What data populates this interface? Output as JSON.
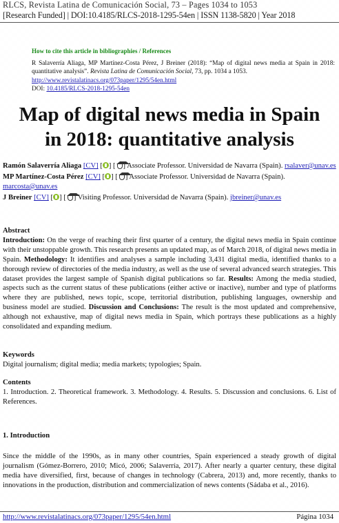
{
  "header": {
    "line1": "RLCS, Revista Latina de Comunicación Social, 73 – Pages 1034 to 1053",
    "line2": "[Research Funded] | DOI:10.4185/RLCS-2018-1295-54en | ISSN 1138-5820 | Year 2018"
  },
  "cite": {
    "heading": "How to cite this article in bibliographies / References",
    "text_a": "R Salaverría Aliaga, MP Martínez-Costa Pérez, J Breiner (2018): “Map of digital news media at Spain in 2018: quantitative analysis”. ",
    "journal": "Revista Latina de Comunicación Social",
    "text_b": ", 73, pp. 1034 a 1053.",
    "url": "http://www.revistalatinacs.org/073paper/1295/54en.html",
    "doi_label": "DOI: ",
    "doi": "10.4185/RLCS-2018-1295-54en"
  },
  "title": {
    "line1": "Map of digital news media in Spain",
    "line2": "in 2018: quantitative analysis"
  },
  "authors": [
    {
      "name": "Ramón Salaverría Aliaga",
      "cv": "[CV]",
      "mid": " [",
      "mid2": "] [",
      "post": "] Associate Professor. Universidad de Navarra (Spain). ",
      "email": "rsalaver@unav.es"
    },
    {
      "name": "MP Martínez-Costa Pérez",
      "cv": "[CV]",
      "mid": " [",
      "mid2": "] [",
      "post": "] Associate Professor. Universidad de Navarra (Spain). ",
      "email": "marcosta@unav.es"
    },
    {
      "name": "J Breiner",
      "cv": "[CV]",
      "mid": " [",
      "mid2": "] [",
      "post": "] Visiting Professor. Universidad de Navarra (Spain). ",
      "email": "jbreiner@unav.es"
    }
  ],
  "abstract": {
    "heading": "Abstract",
    "intro_label": "Introduction:",
    "intro_text": " On the verge of reaching their first quarter of a century, the digital news media in Spain continue with their unstoppable growth. This research presents an updated map, as of March 2018, of digital news media in Spain. ",
    "method_label": "Methodology:",
    "method_text": " It identifies and analyses a sample including 3,431 digital media, identified thanks to a thorough review of directories of the media industry, as well as the use of several advanced search strategies. This dataset provides the largest sample of Spanish digital publications so far. ",
    "results_label": "Results:",
    "results_text": " Among the media studied, aspects such as the current status of these publications (either active or inactive), number and type of platforms where they are published, news topic, scope, territorial distribution, publishing languages, ownership and business model are studied. ",
    "disc_label": "Discussion and Conclusions:",
    "disc_text": " The result is the most updated and comprehensive, although not exhaustive, map of digital news media in Spain, which portrays these publications as a highly consolidated and expanding medium."
  },
  "keywords": {
    "heading": "Keywords",
    "text": "Digital journalism; digital media; media markets; typologies; Spain."
  },
  "contents": {
    "heading": "Contents",
    "text": "1. Introduction. 2. Theoretical framework. 3. Methodology. 4. Results. 5. Discussion and conclusions. 6. List of References."
  },
  "intro_section": {
    "heading": "1. Introduction",
    "text": "Since the middle of the 1990s, as in many other countries, Spain experienced a steady growth of digital journalism (Gómez-Borrero, 2010; Micó, 2006; Salaverría, 2017). After nearly a quarter century, these digital media have diversified, first, because of changes in technology (Cabrera, 2013) and, more recently, thanks to innovations in the production, distribution and commercialization of news contents (Sádaba et al., 2016)."
  },
  "footer": {
    "url": "http://www.revistalatinacs.org/073paper/1295/54en.html",
    "page": "Página 1034"
  },
  "colors": {
    "link": "#1a1ab5",
    "cite_heading": "#1a8a1a",
    "orcid": "#8dbf2a"
  },
  "icons": [
    "orcid-icon",
    "google-scholar-icon"
  ]
}
